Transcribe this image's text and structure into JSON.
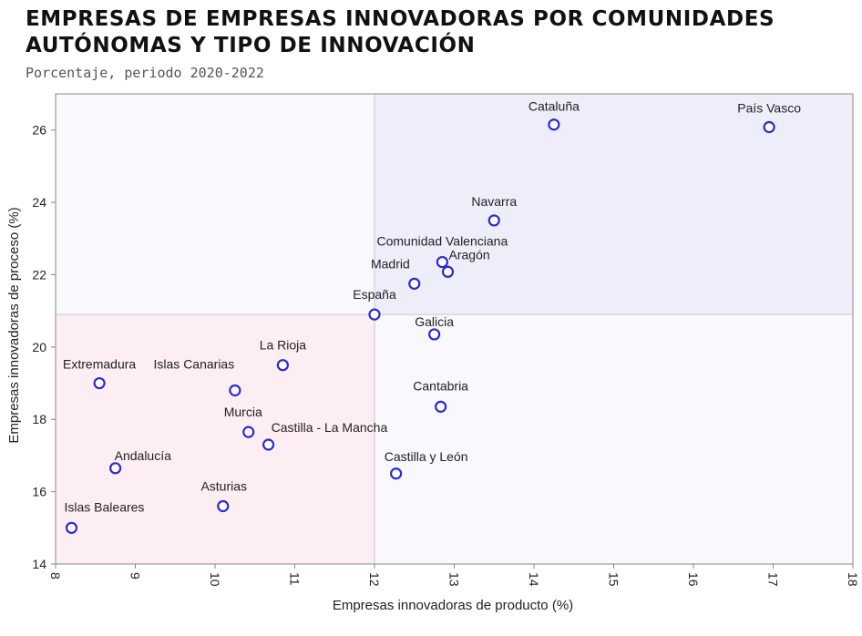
{
  "title": "Empresas de empresas innovadoras por Comunidades Autónomas y tipo de innovación",
  "subtitle": "Porcentaje, periodo 2020-2022",
  "chart_data": {
    "type": "scatter",
    "xlabel": "Empresas innovadoras de producto (%)",
    "ylabel": "Empresas innovadoras de proceso (%)",
    "xlim": [
      8,
      18
    ],
    "ylim": [
      14,
      27
    ],
    "xticks": [
      "8",
      "9",
      "10",
      "11",
      "12",
      "13",
      "14",
      "15",
      "16",
      "17",
      "18"
    ],
    "yticks": [
      "14",
      "16",
      "18",
      "20",
      "22",
      "24",
      "26"
    ],
    "reference": {
      "x": 12.0,
      "y": 20.9
    },
    "colors": {
      "marker": "#2b2bd6",
      "quadrant_low_low": "#fdeef3",
      "quadrant_high_high": "#eeeefb",
      "quadrant_other": "#f8f8fd",
      "divider": "#c8c8d0"
    },
    "points": [
      {
        "label": "Cataluña",
        "x": 14.25,
        "y": 26.15
      },
      {
        "label": "País Vasco",
        "x": 16.95,
        "y": 26.08
      },
      {
        "label": "Navarra",
        "x": 13.5,
        "y": 23.5
      },
      {
        "label": "Comunidad Valenciana",
        "x": 12.85,
        "y": 22.35
      },
      {
        "label": "Aragón",
        "x": 12.92,
        "y": 22.08
      },
      {
        "label": "Madrid",
        "x": 12.5,
        "y": 21.75
      },
      {
        "label": "España",
        "x": 12.0,
        "y": 20.9
      },
      {
        "label": "Galicia",
        "x": 12.75,
        "y": 20.35
      },
      {
        "label": "La Rioja",
        "x": 10.85,
        "y": 19.5
      },
      {
        "label": "Extremadura",
        "x": 8.55,
        "y": 19.0
      },
      {
        "label": "Islas Canarias",
        "x": 10.25,
        "y": 18.8
      },
      {
        "label": "Cantabria",
        "x": 12.83,
        "y": 18.35
      },
      {
        "label": "Murcia",
        "x": 10.42,
        "y": 17.65
      },
      {
        "label": "Castilla - La Mancha",
        "x": 10.67,
        "y": 17.3
      },
      {
        "label": "Andalucía",
        "x": 8.75,
        "y": 16.65
      },
      {
        "label": "Castilla y León",
        "x": 12.27,
        "y": 16.5
      },
      {
        "label": "Asturias",
        "x": 10.1,
        "y": 15.6
      },
      {
        "label": "Islas Baleares",
        "x": 8.2,
        "y": 15.0
      }
    ]
  }
}
